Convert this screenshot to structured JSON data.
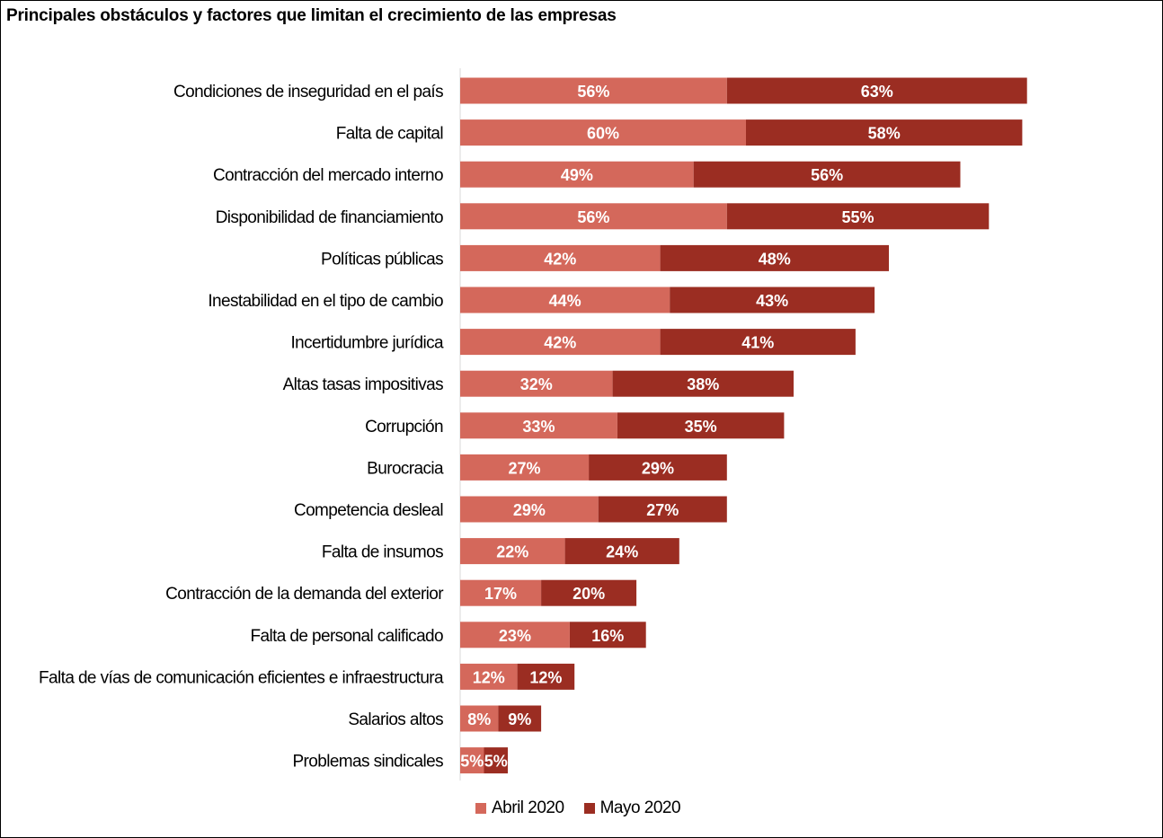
{
  "chart_data": {
    "type": "bar",
    "orientation": "horizontal",
    "stacked": true,
    "title": "Principales obstáculos y factores que limitan el crecimiento de las empresas",
    "categories": [
      "Condiciones de inseguridad en el país",
      "Falta de capital",
      "Contracción del mercado interno",
      "Disponibilidad de financiamiento",
      "Políticas públicas",
      "Inestabilidad en el tipo de cambio",
      "Incertidumbre jurídica",
      "Altas tasas impositivas",
      "Corrupción",
      "Burocracia",
      "Competencia desleal",
      "Falta de insumos",
      "Contracción de la demanda del exterior",
      "Falta de personal calificado",
      "Falta de vías de comunicación eficientes e infraestructura",
      "Salarios altos",
      "Problemas sindicales"
    ],
    "series": [
      {
        "name": "Abril 2020",
        "color": "#d4685b",
        "values": [
          56,
          60,
          49,
          56,
          42,
          44,
          42,
          32,
          33,
          27,
          29,
          22,
          17,
          23,
          12,
          8,
          5
        ],
        "labels": [
          "56%",
          "60%",
          "49%",
          "56%",
          "42%",
          "44%",
          "42%",
          "32%",
          "33%",
          "27%",
          "29%",
          "22%",
          "17%",
          "23%",
          "12%",
          "8%",
          "5%"
        ]
      },
      {
        "name": "Mayo 2020",
        "color": "#9b2d22",
        "values": [
          63,
          58,
          56,
          55,
          48,
          43,
          41,
          38,
          35,
          29,
          27,
          24,
          20,
          16,
          12,
          9,
          5
        ],
        "labels": [
          "63%",
          "58%",
          "56%",
          "55%",
          "48%",
          "43%",
          "41%",
          "38%",
          "35%",
          "29%",
          "27%",
          "24%",
          "20%",
          "16%",
          "12%",
          "9%",
          "5%"
        ]
      }
    ],
    "xlim": [
      0,
      120
    ],
    "grid": false,
    "legend_position": "bottom",
    "axis_line_color": "#d9d9d9"
  }
}
